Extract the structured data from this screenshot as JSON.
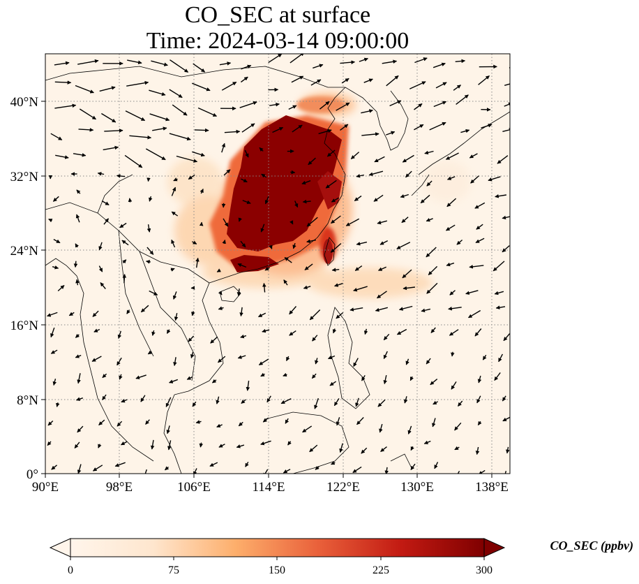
{
  "title_line1": "CO_SEC at surface",
  "title_line2": "Time: 2024-03-14 09:00:00",
  "map": {
    "lon_range": [
      90,
      139.5
    ],
    "lat_range": [
      0,
      45
    ],
    "lon_ticks": [
      {
        "value": 90,
        "label": "90°E"
      },
      {
        "value": 98,
        "label": "98°E"
      },
      {
        "value": 106,
        "label": "106°E"
      },
      {
        "value": 114,
        "label": "114°E"
      },
      {
        "value": 122,
        "label": "122°E"
      },
      {
        "value": 130,
        "label": "130°E"
      },
      {
        "value": 138,
        "label": "138°E"
      }
    ],
    "lat_ticks": [
      {
        "value": 0,
        "label": "0°"
      },
      {
        "value": 8,
        "label": "8°N"
      },
      {
        "value": 16,
        "label": "16°N"
      },
      {
        "value": 24,
        "label": "24°N"
      },
      {
        "value": 32,
        "label": "32°N"
      },
      {
        "value": 40,
        "label": "40°N"
      }
    ],
    "gridlines": "dotted",
    "colormap": [
      "#fff5eb",
      "#fdd0a2",
      "#fd8d3c",
      "#d94801",
      "#a50f0d",
      "#7f0000"
    ],
    "wind_vectors": "quiver arrows across domain"
  },
  "colorbar": {
    "label": "CO_SEC (ppbv)",
    "ticks": [
      0,
      75,
      150,
      225,
      300
    ],
    "range": [
      0,
      300
    ],
    "extend": "both"
  }
}
